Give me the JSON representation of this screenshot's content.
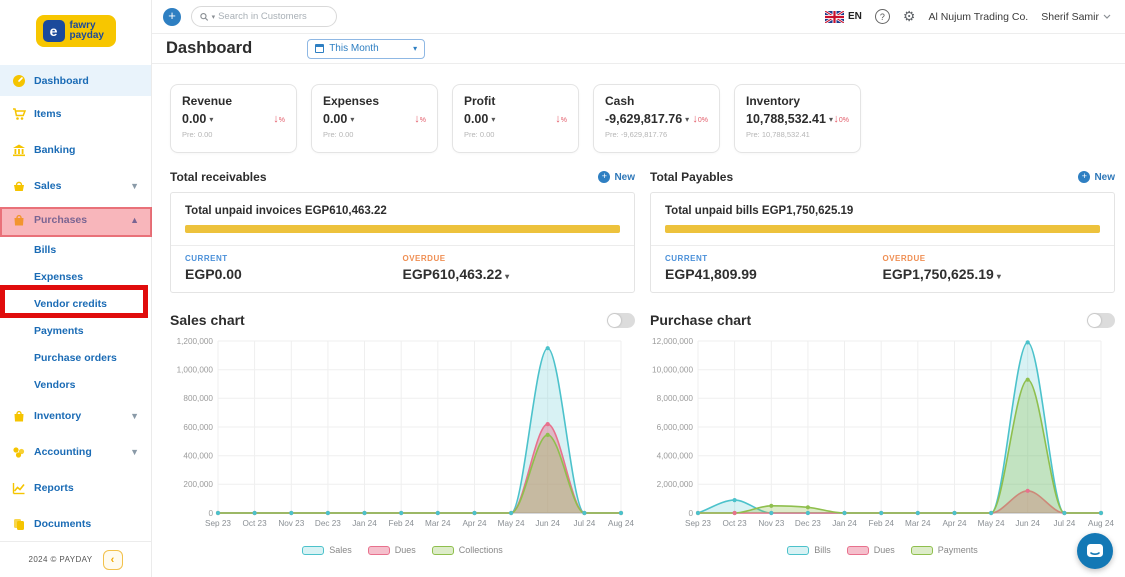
{
  "sidebar": {
    "logo": {
      "line1": "fawry",
      "line2": "payday"
    },
    "items": [
      {
        "label": "Dashboard"
      },
      {
        "label": "Items"
      },
      {
        "label": "Banking"
      },
      {
        "label": "Sales"
      },
      {
        "label": "Purchases"
      },
      {
        "label": "Bills"
      },
      {
        "label": "Expenses"
      },
      {
        "label": "Vendor credits"
      },
      {
        "label": "Payments"
      },
      {
        "label": "Purchase orders"
      },
      {
        "label": "Vendors"
      },
      {
        "label": "Inventory"
      },
      {
        "label": "Accounting"
      },
      {
        "label": "Reports"
      },
      {
        "label": "Documents"
      }
    ],
    "footer": {
      "copyright": "2024 © PAYDAY",
      "collapse": "‹"
    }
  },
  "topbar": {
    "search_placeholder": "Search in Customers",
    "language": "EN",
    "help": "?",
    "company": "Al Nujum Trading Co.",
    "user": "Sherif Samir"
  },
  "page": {
    "title": "Dashboard",
    "period": "This Month"
  },
  "kpis": [
    {
      "title": "Revenue",
      "value": "0.00",
      "delta": "%",
      "pre": "Pre: 0.00"
    },
    {
      "title": "Expenses",
      "value": "0.00",
      "delta": "%",
      "pre": "Pre: 0.00"
    },
    {
      "title": "Profit",
      "value": "0.00",
      "delta": "%",
      "pre": "Pre: 0.00"
    },
    {
      "title": "Cash",
      "value": "-9,629,817.76",
      "delta": "0%",
      "pre": "Pre: -9,629,817.76"
    },
    {
      "title": "Inventory",
      "value": "10,788,532.41",
      "delta": "0%",
      "pre": "Pre: 10,788,532.41"
    }
  ],
  "receivables": {
    "section_title": "Total receivables",
    "new_label": "New",
    "summary": "Total unpaid invoices EGP610,463.22",
    "current_label": "CURRENT",
    "current_value": "EGP0.00",
    "overdue_label": "OVERDUE",
    "overdue_value": "EGP610,463.22"
  },
  "payables": {
    "section_title": "Total Payables",
    "new_label": "New",
    "summary": "Total unpaid bills EGP1,750,625.19",
    "current_label": "CURRENT",
    "current_value": "EGP41,809.99",
    "overdue_label": "OVERDUE",
    "overdue_value": "EGP1,750,625.19"
  },
  "colors": {
    "accent_blue": "#2e7fc2",
    "sidebar_blue": "#1a6bb5",
    "brand_yellow": "#f7c600",
    "bar_yellow": "#edc23c",
    "negative_red": "#e35d6a",
    "annotation_red": "#e00c0c"
  },
  "chart_data": [
    {
      "type": "area",
      "title": "Sales chart",
      "categories": [
        "Sep 23",
        "Oct 23",
        "Nov 23",
        "Dec 23",
        "Jan 24",
        "Feb 24",
        "Mar 24",
        "Apr 24",
        "May 24",
        "Jun 24",
        "Jul 24",
        "Aug 24"
      ],
      "ylim": [
        0,
        1200000
      ],
      "yticks": [
        0,
        200000,
        400000,
        600000,
        800000,
        1000000,
        1200000
      ],
      "grid": true,
      "legend_position": "bottom",
      "series": [
        {
          "name": "Sales",
          "color": "#4cc2cb",
          "fill": "rgba(76,194,203,0.22)",
          "values": [
            0,
            0,
            0,
            0,
            0,
            0,
            0,
            0,
            0,
            1150000,
            0,
            0
          ]
        },
        {
          "name": "Dues",
          "color": "#e8718d",
          "fill": "rgba(232,113,141,0.45)",
          "values": [
            0,
            0,
            0,
            0,
            0,
            0,
            0,
            0,
            0,
            620000,
            0,
            0
          ]
        },
        {
          "name": "Collections",
          "color": "#8fbf4d",
          "fill": "rgba(143,191,77,0.30)",
          "values": [
            0,
            0,
            0,
            0,
            0,
            0,
            0,
            0,
            0,
            545000,
            0,
            0
          ]
        }
      ]
    },
    {
      "type": "area",
      "title": "Purchase chart",
      "categories": [
        "Sep 23",
        "Oct 23",
        "Nov 23",
        "Dec 23",
        "Jan 24",
        "Feb 24",
        "Mar 24",
        "Apr 24",
        "May 24",
        "Jun 24",
        "Jul 24",
        "Aug 24"
      ],
      "ylim": [
        0,
        12000000
      ],
      "yticks": [
        0,
        2000000,
        4000000,
        6000000,
        8000000,
        10000000,
        12000000
      ],
      "grid": true,
      "legend_position": "bottom",
      "series": [
        {
          "name": "Bills",
          "color": "#4cc2cb",
          "fill": "rgba(76,194,203,0.22)",
          "values": [
            0,
            900000,
            0,
            0,
            0,
            0,
            0,
            0,
            0,
            11900000,
            0,
            0
          ]
        },
        {
          "name": "Dues",
          "color": "#e8718d",
          "fill": "rgba(232,113,141,0.45)",
          "values": [
            0,
            0,
            0,
            0,
            0,
            0,
            0,
            0,
            0,
            1550000,
            0,
            0
          ]
        },
        {
          "name": "Payments",
          "color": "#8fbf4d",
          "fill": "rgba(143,191,77,0.30)",
          "values": [
            0,
            0,
            500000,
            400000,
            0,
            0,
            0,
            0,
            0,
            9300000,
            0,
            0
          ]
        }
      ]
    }
  ]
}
